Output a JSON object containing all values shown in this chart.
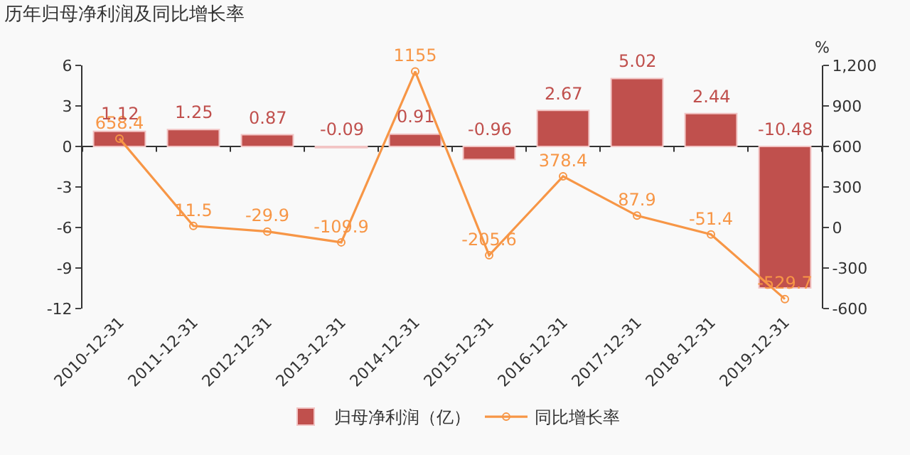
{
  "chart_data": {
    "type": "bar",
    "title": "历年归母净利润及同比增长率",
    "y2label": "%",
    "categories": [
      "2010-12-31",
      "2011-12-31",
      "2012-12-31",
      "2013-12-31",
      "2014-12-31",
      "2015-12-31",
      "2016-12-31",
      "2017-12-31",
      "2018-12-31",
      "2019-12-31"
    ],
    "series": [
      {
        "name": "归母净利润（亿）",
        "color": "#c0504d",
        "values": [
          1.12,
          1.25,
          0.87,
          -0.09,
          0.91,
          -0.96,
          2.67,
          5.02,
          2.44,
          -10.48
        ]
      },
      {
        "name": "同比增长率",
        "type": "line",
        "axis": "y2",
        "color": "#f79646",
        "marker": "circle",
        "values": [
          658.4,
          11.5,
          -29.9,
          -109.9,
          1155,
          -205.6,
          378.4,
          87.9,
          -51.4,
          -529.7
        ]
      }
    ],
    "ylim": [
      -12,
      6
    ],
    "yticks": [
      -12,
      -9,
      -6,
      -3,
      0,
      3,
      6
    ],
    "y2lim": [
      -600,
      1200
    ],
    "y2ticks": [
      -600,
      -300,
      0,
      300,
      600,
      900,
      {
        "value": 1200,
        "label": "1,200"
      }
    ],
    "ref_lines": [
      {
        "axis": "y",
        "value": 0,
        "color": "#333333",
        "line_style": "solid"
      }
    ],
    "data_labels": true,
    "grid": false,
    "legend": "bottom"
  }
}
